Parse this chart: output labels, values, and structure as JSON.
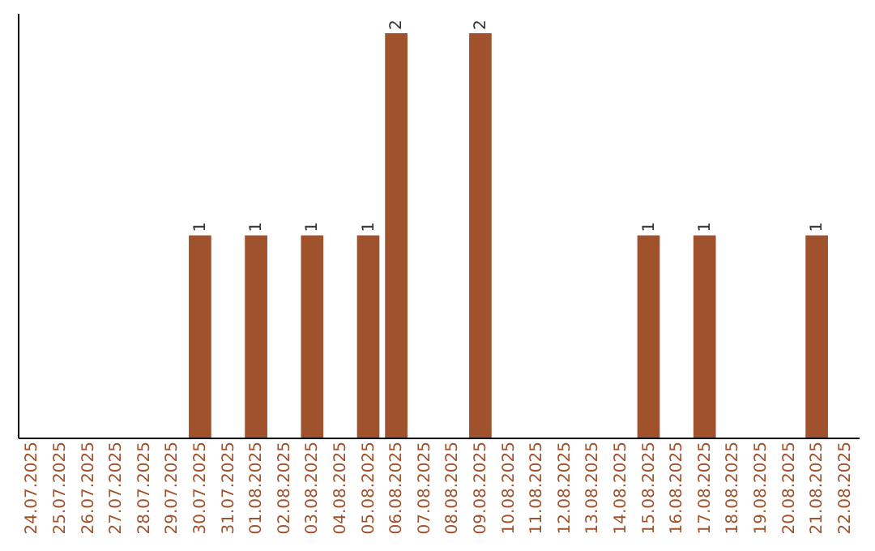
{
  "chart_data": {
    "type": "bar",
    "categories": [
      "24.07.2025",
      "25.07.2025",
      "26.07.2025",
      "27.07.2025",
      "28.07.2025",
      "29.07.2025",
      "30.07.2025",
      "31.07.2025",
      "01.08.2025",
      "02.08.2025",
      "03.08.2025",
      "04.08.2025",
      "05.08.2025",
      "06.08.2025",
      "07.08.2025",
      "08.08.2025",
      "09.08.2025",
      "10.08.2025",
      "11.08.2025",
      "12.08.2025",
      "13.08.2025",
      "14.08.2025",
      "15.08.2025",
      "16.08.2025",
      "17.08.2025",
      "18.08.2025",
      "19.08.2025",
      "20.08.2025",
      "21.08.2025",
      "22.08.2025"
    ],
    "values": [
      0,
      0,
      0,
      0,
      0,
      0,
      1,
      0,
      1,
      0,
      1,
      0,
      1,
      2,
      0,
      0,
      2,
      0,
      0,
      0,
      0,
      0,
      1,
      0,
      1,
      0,
      0,
      0,
      1,
      0
    ],
    "value_labels": [
      null,
      null,
      null,
      null,
      null,
      null,
      "1",
      null,
      "1",
      null,
      "1",
      null,
      "1",
      "2",
      null,
      null,
      "2",
      null,
      null,
      null,
      null,
      null,
      "1",
      null,
      "1",
      null,
      null,
      null,
      "1",
      null
    ],
    "color": "#a0522d",
    "ylim": [
      0,
      2.1
    ],
    "tick_labels": "x",
    "grid": false
  }
}
